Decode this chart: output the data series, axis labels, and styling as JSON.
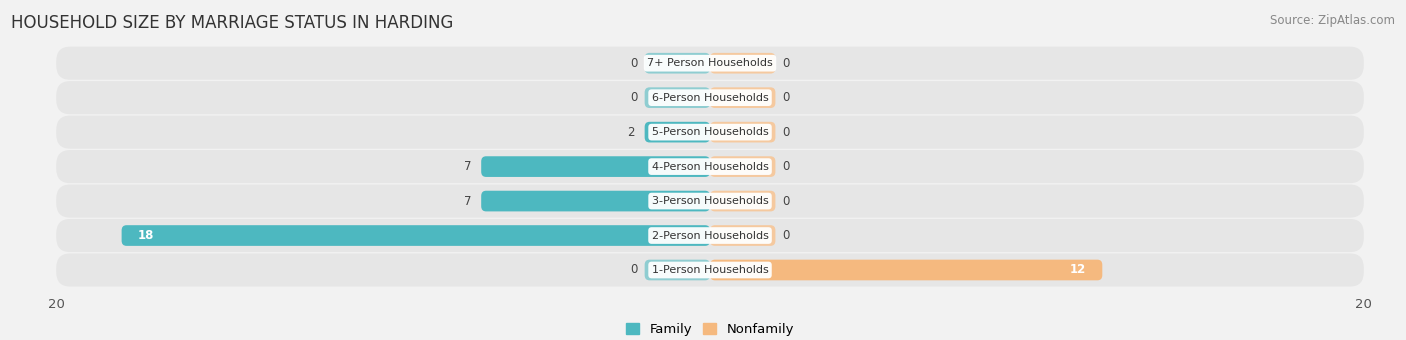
{
  "title": "HOUSEHOLD SIZE BY MARRIAGE STATUS IN HARDING",
  "source": "Source: ZipAtlas.com",
  "categories": [
    "7+ Person Households",
    "6-Person Households",
    "5-Person Households",
    "4-Person Households",
    "3-Person Households",
    "2-Person Households",
    "1-Person Households"
  ],
  "family_values": [
    0,
    0,
    2,
    7,
    7,
    18,
    0
  ],
  "nonfamily_values": [
    0,
    0,
    0,
    0,
    0,
    0,
    12
  ],
  "family_color": "#4db8c0",
  "nonfamily_color": "#f5b97f",
  "stub_family_color": "#90d0d5",
  "stub_nonfamily_color": "#f5c99f",
  "xlim": 20,
  "bar_height": 0.6,
  "background_color": "#f0f0f0",
  "row_bg_light": "#ebebeb",
  "row_bg_dark": "#e0e0e0",
  "title_fontsize": 12,
  "source_fontsize": 8.5,
  "axis_fontsize": 9.5,
  "value_fontsize": 8.5,
  "category_fontsize": 8.0
}
